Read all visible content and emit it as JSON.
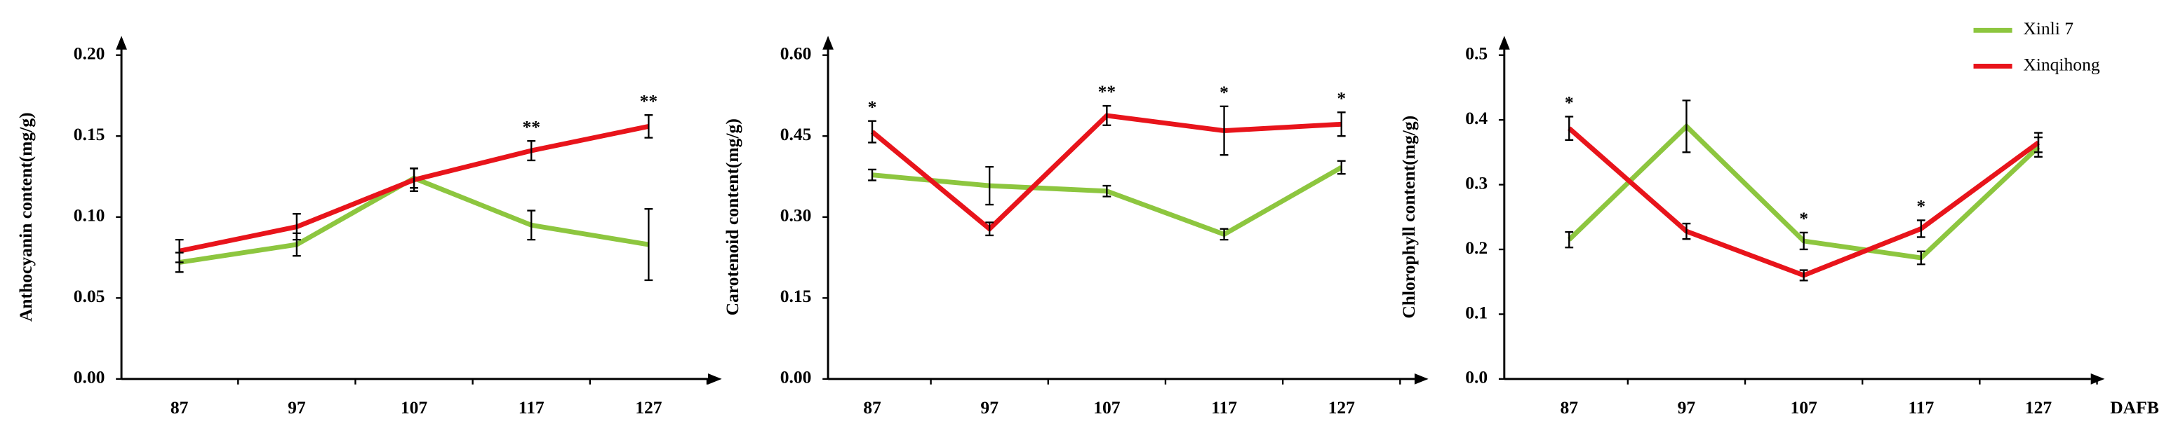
{
  "chart_data": [
    {
      "type": "line",
      "ylabel": "Anthocyanin content(mg/g)",
      "categories": [
        "87",
        "97",
        "107",
        "117",
        "127"
      ],
      "ylim": [
        0,
        0.2
      ],
      "yticks": [
        {
          "value": 0,
          "label": "0.00"
        },
        {
          "value": 0.05,
          "label": "0.05"
        },
        {
          "value": 0.1,
          "label": "0.10"
        },
        {
          "value": 0.15,
          "label": "0.15"
        },
        {
          "value": 0.2,
          "label": "0.20"
        }
      ],
      "series": [
        {
          "color": "#8dc63f",
          "values": [
            0.072,
            0.083,
            0.124,
            0.095,
            0.083
          ],
          "errors": [
            0.006,
            0.007,
            0.006,
            0.009,
            0.022
          ]
        },
        {
          "color": "#e8141b",
          "values": [
            0.079,
            0.094,
            0.123,
            0.141,
            0.156
          ],
          "errors": [
            0.007,
            0.008,
            0.007,
            0.006,
            0.007
          ]
        }
      ],
      "significance": [
        null,
        null,
        null,
        "**",
        "**"
      ]
    },
    {
      "type": "line",
      "ylabel": "Carotenoid content(mg/g)",
      "categories": [
        "87",
        "97",
        "107",
        "117",
        "127"
      ],
      "ylim": [
        0,
        0.6
      ],
      "yticks": [
        {
          "value": 0,
          "label": "0.00"
        },
        {
          "value": 0.15,
          "label": "0.15"
        },
        {
          "value": 0.3,
          "label": "0.30"
        },
        {
          "value": 0.45,
          "label": "0.45"
        },
        {
          "value": 0.6,
          "label": "0.60"
        }
      ],
      "series": [
        {
          "color": "#8dc63f",
          "values": [
            0.378,
            0.358,
            0.348,
            0.268,
            0.392
          ],
          "errors": [
            0.01,
            0.035,
            0.01,
            0.01,
            0.012
          ]
        },
        {
          "color": "#e8141b",
          "values": [
            0.458,
            0.278,
            0.488,
            0.46,
            0.472
          ],
          "errors": [
            0.02,
            0.012,
            0.018,
            0.045,
            0.022
          ]
        }
      ],
      "significance": [
        "*",
        null,
        "**",
        "*",
        "*"
      ]
    },
    {
      "type": "line",
      "ylabel": "Chlorophyll content(mg/g)",
      "xlabel": "DAFB",
      "categories": [
        "87",
        "97",
        "107",
        "117",
        "127"
      ],
      "ylim": [
        0,
        0.5
      ],
      "yticks": [
        {
          "value": 0,
          "label": "0.0"
        },
        {
          "value": 0.1,
          "label": "0.1"
        },
        {
          "value": 0.2,
          "label": "0.2"
        },
        {
          "value": 0.3,
          "label": "0.3"
        },
        {
          "value": 0.4,
          "label": "0.4"
        },
        {
          "value": 0.5,
          "label": "0.5"
        }
      ],
      "legend": "upper right",
      "series": [
        {
          "name": "Xinli 7",
          "color": "#8dc63f",
          "values": [
            0.215,
            0.39,
            0.213,
            0.187,
            0.358
          ],
          "errors": [
            0.012,
            0.04,
            0.013,
            0.01,
            0.015
          ]
        },
        {
          "name": "Xinqihong",
          "color": "#e8141b",
          "values": [
            0.387,
            0.228,
            0.16,
            0.232,
            0.365
          ],
          "errors": [
            0.018,
            0.012,
            0.008,
            0.013,
            0.015
          ]
        }
      ],
      "significance": [
        "*",
        null,
        "*",
        "*",
        null
      ]
    }
  ]
}
